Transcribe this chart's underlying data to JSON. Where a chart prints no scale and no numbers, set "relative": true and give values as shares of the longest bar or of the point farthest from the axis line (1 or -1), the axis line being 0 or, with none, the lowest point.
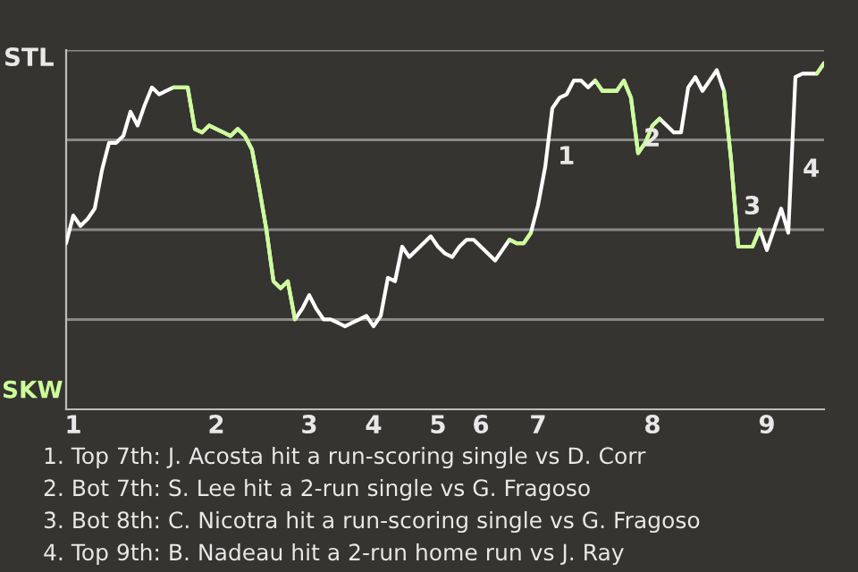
{
  "chart_data": {
    "type": "line",
    "relative": true,
    "grid": "y",
    "line_style": "solid",
    "marker": "none",
    "categories": [
      null,
      "1",
      null,
      null,
      null,
      null,
      null,
      null,
      null,
      null,
      null,
      null,
      null,
      null,
      null,
      null,
      null,
      null,
      null,
      null,
      null,
      "2",
      null,
      null,
      null,
      null,
      null,
      null,
      null,
      null,
      null,
      null,
      null,
      null,
      "3",
      null,
      null,
      null,
      null,
      null,
      null,
      null,
      null,
      "4",
      null,
      null,
      null,
      null,
      null,
      null,
      null,
      null,
      "5",
      null,
      null,
      null,
      null,
      null,
      "6",
      null,
      null,
      null,
      null,
      null,
      null,
      null,
      "7",
      null,
      null,
      null,
      null,
      null,
      null,
      null,
      null,
      null,
      null,
      null,
      null,
      null,
      null,
      null,
      "8",
      null,
      null,
      null,
      null,
      null,
      null,
      null,
      null,
      null,
      null,
      null,
      null,
      null,
      null,
      null,
      "9",
      null,
      null,
      null,
      null,
      null,
      null,
      null,
      null
    ],
    "series": [
      {
        "color": "#ffffff",
        "values": [
          0.48,
          0.56,
          0.53,
          0.55,
          0.58,
          0.69,
          0.77,
          0.77,
          0.79,
          0.86,
          0.82,
          0.88,
          0.93,
          0.91,
          0.92,
          0.93,
          0.93,
          0.93,
          0.81,
          0.8,
          0.82,
          0.81,
          0.8,
          0.79,
          0.81,
          0.79,
          0.75,
          0.64,
          0.52,
          0.37,
          0.35,
          0.37,
          0.26,
          0.29,
          0.33,
          0.29,
          0.26,
          0.26,
          0.25,
          0.24,
          0.25,
          0.26,
          0.27,
          0.24,
          0.27,
          0.38,
          0.37,
          0.47,
          0.44,
          0.46,
          0.48,
          0.5,
          0.47,
          0.45,
          0.44,
          0.47,
          0.49,
          0.49,
          0.47,
          0.45,
          0.43,
          0.46,
          0.49,
          0.48,
          0.48,
          0.51,
          0.59,
          0.7,
          0.87,
          0.9,
          0.91,
          0.95,
          0.95,
          0.93,
          0.95,
          0.92,
          0.92,
          0.92,
          0.95,
          0.9,
          0.74,
          0.77,
          0.82,
          0.84,
          0.82,
          0.8,
          0.8,
          0.93,
          0.96,
          0.92,
          0.95,
          0.98,
          0.92,
          0.72,
          0.47,
          0.47,
          0.47,
          0.52,
          0.46,
          0.52,
          0.58,
          0.51,
          0.96,
          0.97,
          0.97,
          0.97,
          1
        ]
      },
      {
        "color": "#ccff99",
        "values": [
          null,
          null,
          null,
          null,
          null,
          null,
          null,
          null,
          null,
          null,
          null,
          null,
          null,
          null,
          null,
          0.93,
          0.93,
          0.93,
          0.81,
          0.8,
          0.82,
          0.81,
          0.8,
          0.79,
          0.81,
          0.79,
          0.75,
          0.64,
          0.52,
          0.37,
          0.35,
          0.37,
          0.26,
          null,
          null,
          null,
          null,
          null,
          null,
          null,
          null,
          null,
          null,
          null,
          null,
          null,
          null,
          null,
          null,
          null,
          null,
          null,
          null,
          null,
          null,
          null,
          null,
          null,
          null,
          null,
          null,
          null,
          0.49,
          0.48,
          0.48,
          0.51,
          null,
          null,
          null,
          null,
          null,
          null,
          null,
          null,
          0.95,
          0.92,
          0.92,
          0.92,
          0.95,
          0.9,
          0.74,
          0.77,
          0.82,
          0.84,
          null,
          null,
          null,
          null,
          null,
          null,
          null,
          null,
          0.92,
          0.72,
          0.47,
          0.47,
          0.47,
          0.52,
          null,
          null,
          null,
          null,
          null,
          null,
          null,
          0.97,
          1
        ]
      }
    ],
    "annotations": [
      "STL",
      "SKW",
      "1",
      "2",
      "3",
      "4",
      "1. Top 7th: J. Acosta hit a run-scoring single vs D. Corr",
      "2. Bot 7th: S. Lee hit a 2-run single vs G. Fragoso",
      "3. Bot 8th: C. Nicotra hit a run-scoring single vs G. Fragoso",
      "4. Top 9th: B. Nadeau hit a 2-run home run vs J. Ray"
    ]
  }
}
